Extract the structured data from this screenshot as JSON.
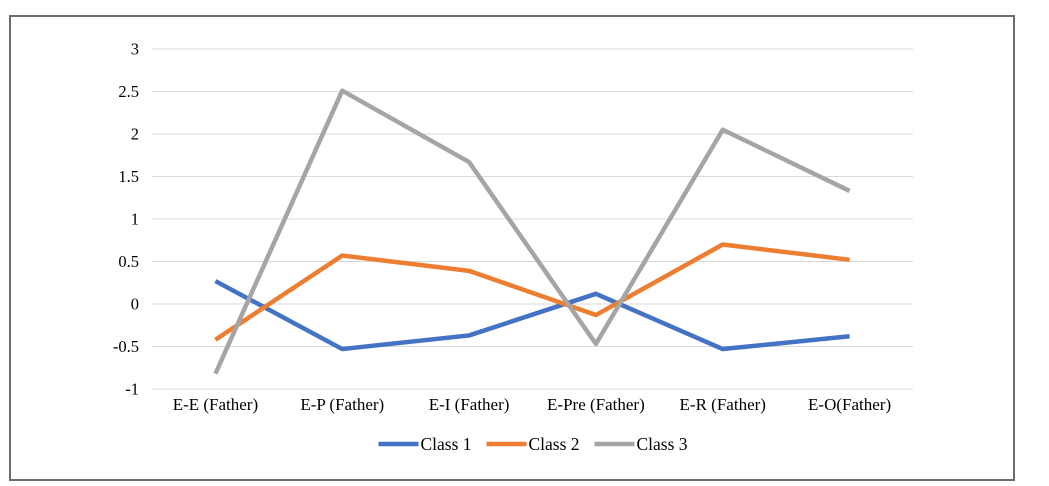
{
  "figure": {
    "kind": "framed line chart figure",
    "frame_border_color": "#6e6e6e",
    "background_color": "#ffffff"
  },
  "chart_data": {
    "type": "line",
    "title": "",
    "xlabel": "",
    "ylabel": "",
    "categories": [
      "E-E (Father)",
      "E-P (Father)",
      "E-I (Father)",
      "E-Pre (Father)",
      "E-R (Father)",
      "E-O(Father)"
    ],
    "series": [
      {
        "name": "Class 1",
        "color": "#4472C4",
        "values": [
          0.27,
          -0.53,
          -0.37,
          0.12,
          -0.53,
          -0.38
        ]
      },
      {
        "name": "Class 2",
        "color": "#ED7D31",
        "values": [
          -0.42,
          0.57,
          0.39,
          -0.13,
          0.7,
          0.52
        ]
      },
      {
        "name": "Class 3",
        "color": "#A5A5A5",
        "values": [
          -0.82,
          2.51,
          1.67,
          -0.47,
          2.05,
          1.33
        ]
      }
    ],
    "ylim": [
      -1,
      3
    ],
    "ytick_step": 0.5,
    "ytick_labels": [
      "3",
      "2.5",
      "2",
      "1.5",
      "1",
      "0.5",
      "0",
      "-0.5",
      "-1"
    ],
    "grid": true,
    "gridline_color": "#D9D9D9",
    "axis_line": "none",
    "text_color": "#000000",
    "legend_position": "bottom",
    "legend_entries": [
      "Class 1",
      "Class 2",
      "Class 3"
    ]
  }
}
